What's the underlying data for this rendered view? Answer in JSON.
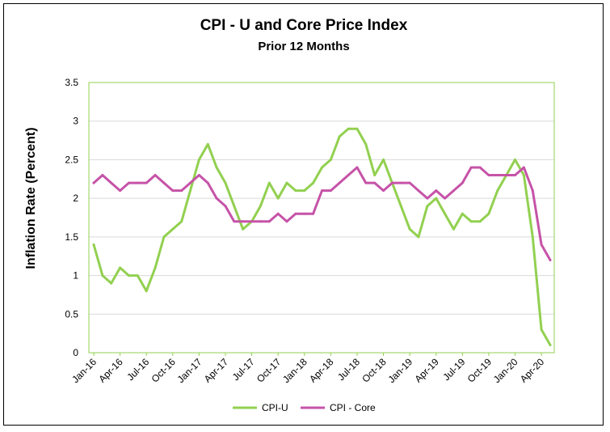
{
  "chart_data": {
    "type": "line",
    "title": "CPI - U and Core Price Index",
    "subtitle": "Prior 12 Months",
    "xlabel": "",
    "ylabel": "Inflation Rate (Percent)",
    "ylim": [
      0,
      3.5
    ],
    "yticks": [
      "0",
      "0.5",
      "1",
      "1.5",
      "2",
      "2.5",
      "3",
      "3.5"
    ],
    "grid": "horizontal",
    "legend_position": "bottom",
    "x_tick_labels": [
      "Jan-16",
      "Apr-16",
      "Jul-16",
      "Oct-16",
      "Jan-17",
      "Apr-17",
      "Jul-17",
      "Oct-17",
      "Jan-18",
      "Apr-18",
      "Jul-18",
      "Oct-18",
      "Jan-19",
      "Apr-19",
      "Jul-19",
      "Oct-19",
      "Jan-20",
      "Apr-20"
    ],
    "x": [
      "2016-01",
      "2016-02",
      "2016-03",
      "2016-04",
      "2016-05",
      "2016-06",
      "2016-07",
      "2016-08",
      "2016-09",
      "2016-10",
      "2016-11",
      "2016-12",
      "2017-01",
      "2017-02",
      "2017-03",
      "2017-04",
      "2017-05",
      "2017-06",
      "2017-07",
      "2017-08",
      "2017-09",
      "2017-10",
      "2017-11",
      "2017-12",
      "2018-01",
      "2018-02",
      "2018-03",
      "2018-04",
      "2018-05",
      "2018-06",
      "2018-07",
      "2018-08",
      "2018-09",
      "2018-10",
      "2018-11",
      "2018-12",
      "2019-01",
      "2019-02",
      "2019-03",
      "2019-04",
      "2019-05",
      "2019-06",
      "2019-07",
      "2019-08",
      "2019-09",
      "2019-10",
      "2019-11",
      "2019-12",
      "2020-01",
      "2020-02",
      "2020-03",
      "2020-04",
      "2020-05"
    ],
    "series": [
      {
        "name": "CPI-U",
        "color": "#92d050",
        "values": [
          1.4,
          1.0,
          0.9,
          1.1,
          1.0,
          1.0,
          0.8,
          1.1,
          1.5,
          1.6,
          1.7,
          2.1,
          2.5,
          2.7,
          2.4,
          2.2,
          1.9,
          1.6,
          1.7,
          1.9,
          2.2,
          2.0,
          2.2,
          2.1,
          2.1,
          2.2,
          2.4,
          2.5,
          2.8,
          2.9,
          2.9,
          2.7,
          2.3,
          2.5,
          2.2,
          1.9,
          1.6,
          1.5,
          1.9,
          2.0,
          1.8,
          1.6,
          1.8,
          1.7,
          1.7,
          1.8,
          2.1,
          2.3,
          2.5,
          2.3,
          1.5,
          0.3,
          0.1
        ]
      },
      {
        "name": "CPI - Core",
        "color": "#c653a8",
        "values": [
          2.2,
          2.3,
          2.2,
          2.1,
          2.2,
          2.2,
          2.2,
          2.3,
          2.2,
          2.1,
          2.1,
          2.2,
          2.3,
          2.2,
          2.0,
          1.9,
          1.7,
          1.7,
          1.7,
          1.7,
          1.7,
          1.8,
          1.7,
          1.8,
          1.8,
          1.8,
          2.1,
          2.1,
          2.2,
          2.3,
          2.4,
          2.2,
          2.2,
          2.1,
          2.2,
          2.2,
          2.2,
          2.1,
          2.0,
          2.1,
          2.0,
          2.1,
          2.2,
          2.4,
          2.4,
          2.3,
          2.3,
          2.3,
          2.3,
          2.4,
          2.1,
          1.4,
          1.2
        ]
      }
    ]
  }
}
